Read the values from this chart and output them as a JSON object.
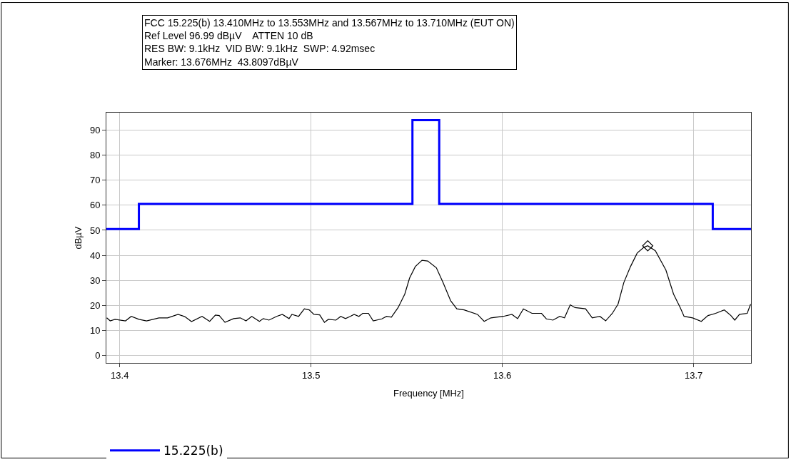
{
  "chart_data": {
    "type": "line",
    "annotations": [
      "FCC 15.225(b) 13.410MHz to 13.553MHz and 13.567MHz to 13.710MHz (EUT ON)",
      "Ref Level 96.99 dBµV    ATTEN 10 dB",
      "RES BW: 9.1kHz  VID BW: 9.1kHz  SWP: 4.92msec",
      "Marker: 13.676MHz  43.8097dBµV"
    ],
    "xlabel": "Frequency [MHz]",
    "ylabel": "dBµV",
    "xlim": [
      13.393,
      13.73
    ],
    "xticks": [
      13.4,
      13.5,
      13.6,
      13.7
    ],
    "ylim": [
      -3,
      97
    ],
    "yticks": [
      0,
      10,
      20,
      30,
      40,
      50,
      60,
      70,
      80,
      90
    ],
    "grid": true,
    "legend": "bottom left",
    "marker": "none",
    "line_style": "solid",
    "series": [
      {
        "name": "15.225(b)",
        "type": "step",
        "color": "#0000ff",
        "x": [
          13.393,
          13.41,
          13.41,
          13.553,
          13.553,
          13.567,
          13.567,
          13.71,
          13.71,
          13.73
        ],
        "values": [
          50.5,
          50.5,
          60.5,
          60.5,
          94,
          94,
          60.5,
          60.5,
          50.5,
          50.5
        ]
      },
      {
        "color": "#000000",
        "x": [
          13.3932,
          13.395,
          13.3975,
          13.403,
          13.406,
          13.41,
          13.414,
          13.4205,
          13.425,
          13.4305,
          13.434,
          13.4375,
          13.443,
          13.447,
          13.45,
          13.452,
          13.455,
          13.4595,
          13.463,
          13.466,
          13.469,
          13.473,
          13.475,
          13.478,
          13.482,
          13.485,
          13.4885,
          13.49,
          13.4935,
          13.4965,
          13.499,
          13.5015,
          13.5045,
          13.507,
          13.509,
          13.513,
          13.5155,
          13.518,
          13.5205,
          13.5225,
          13.525,
          13.527,
          13.53,
          13.5325,
          13.537,
          13.5395,
          13.542,
          13.5455,
          13.549,
          13.5515,
          13.5545,
          13.558,
          13.561,
          13.5655,
          13.569,
          13.573,
          13.5762,
          13.58,
          13.587,
          13.5905,
          13.594,
          13.6005,
          13.605,
          13.608,
          13.611,
          13.6155,
          13.6205,
          13.623,
          13.6265,
          13.63,
          13.6325,
          13.6355,
          13.638,
          13.6435,
          13.647,
          13.651,
          13.654,
          13.6575,
          13.6605,
          13.6635,
          13.667,
          13.6705,
          13.674,
          13.676,
          13.68,
          13.6855,
          13.6895,
          13.693,
          13.695,
          13.6995,
          13.704,
          13.7075,
          13.7115,
          13.716,
          13.7195,
          13.7215,
          13.724,
          13.728,
          13.7298
        ],
        "values": [
          15.0,
          13.8,
          14.4,
          13.8,
          15.6,
          14.4,
          13.8,
          15.0,
          15.0,
          16.4,
          15.5,
          13.5,
          15.6,
          13.6,
          16.1,
          15.9,
          13.2,
          14.7,
          15.0,
          13.8,
          15.6,
          13.6,
          14.7,
          14.1,
          15.6,
          16.4,
          14.7,
          16.4,
          15.6,
          18.6,
          18.2,
          16.4,
          16.2,
          13.2,
          14.4,
          14.1,
          15.6,
          14.7,
          15.6,
          16.4,
          15.6,
          16.8,
          16.8,
          13.8,
          14.6,
          15.6,
          15.3,
          19.1,
          24.5,
          30.9,
          35.5,
          38.0,
          37.7,
          35.0,
          29.1,
          21.8,
          18.6,
          18.2,
          16.4,
          13.6,
          15.0,
          15.6,
          16.4,
          14.7,
          18.6,
          16.8,
          16.8,
          14.6,
          14.1,
          15.6,
          15.0,
          20.2,
          19.1,
          18.6,
          15.0,
          15.6,
          13.8,
          16.8,
          20.5,
          29.1,
          35.5,
          40.9,
          43.2,
          43.8,
          41.8,
          34.1,
          24.5,
          19.1,
          15.6,
          15.0,
          13.6,
          15.9,
          16.8,
          18.2,
          15.9,
          14.1,
          16.4,
          16.8,
          20.5
        ]
      },
      {
        "type": "scatter",
        "marker": "diamond",
        "color": "#000000",
        "x": [
          13.676
        ],
        "values": [
          43.8
        ]
      }
    ]
  }
}
